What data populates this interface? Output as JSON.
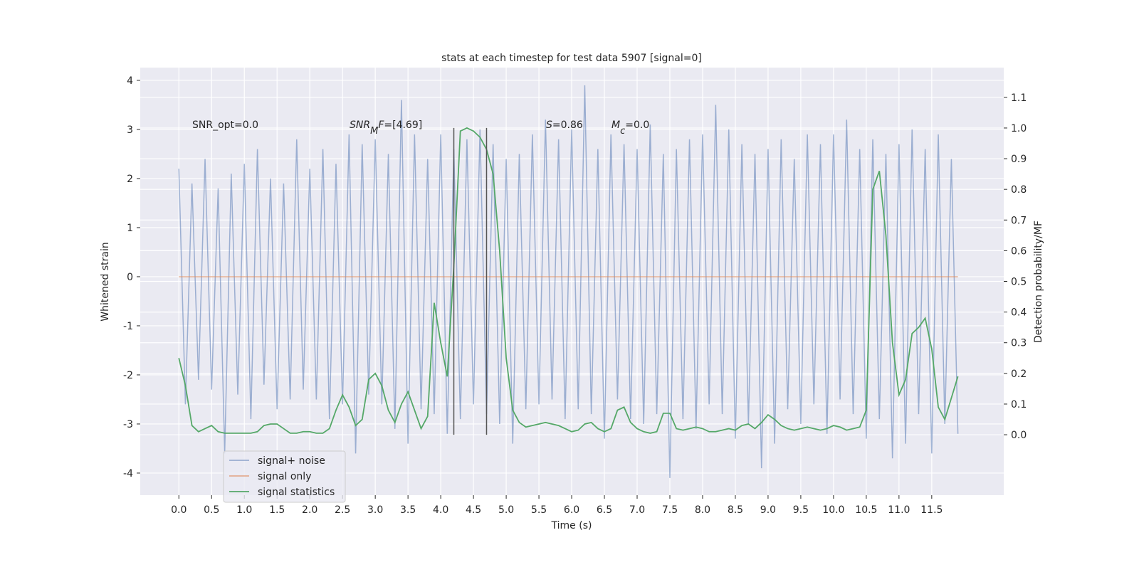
{
  "chart_data": {
    "type": "line",
    "title": "stats at each timestep for test data 5907 [signal=0]",
    "xlabel": "Time (s)",
    "ylabel": "Whitened strain",
    "y2label": "Detection probability/MF",
    "annotations": [
      [
        "SNR_opt=0.0"
      ],
      [
        "SNR",
        "M",
        "F",
        "=[4.69]"
      ],
      [
        "S",
        "=0.86"
      ],
      [
        "M",
        "c",
        "=0.0"
      ]
    ],
    "x": [
      0.0,
      0.1,
      0.2,
      0.3,
      0.4,
      0.5,
      0.6,
      0.7,
      0.8,
      0.9,
      1.0,
      1.1,
      1.2,
      1.3,
      1.4,
      1.5,
      1.6,
      1.7,
      1.8,
      1.9,
      2.0,
      2.1,
      2.2,
      2.3,
      2.4,
      2.5,
      2.6,
      2.7,
      2.8,
      2.9,
      3.0,
      3.1,
      3.2,
      3.3,
      3.4,
      3.5,
      3.6,
      3.7,
      3.8,
      3.9,
      4.0,
      4.1,
      4.2,
      4.3,
      4.4,
      4.5,
      4.6,
      4.7,
      4.8,
      4.9,
      5.0,
      5.1,
      5.2,
      5.3,
      5.4,
      5.5,
      5.6,
      5.7,
      5.8,
      5.9,
      6.0,
      6.1,
      6.2,
      6.3,
      6.4,
      6.5,
      6.6,
      6.7,
      6.8,
      6.9,
      7.0,
      7.1,
      7.2,
      7.3,
      7.4,
      7.5,
      7.6,
      7.7,
      7.8,
      7.9,
      8.0,
      8.1,
      8.2,
      8.3,
      8.4,
      8.5,
      8.6,
      8.7,
      8.8,
      8.9,
      9.0,
      9.1,
      9.2,
      9.3,
      9.4,
      9.5,
      9.6,
      9.7,
      9.8,
      9.9,
      10.0,
      10.1,
      10.2,
      10.3,
      10.4,
      10.5,
      10.6,
      10.7,
      10.8,
      10.9,
      11.0,
      11.1,
      11.2,
      11.3,
      11.4,
      11.5,
      11.6,
      11.7,
      11.8,
      11.9
    ],
    "series": [
      {
        "name": "signal+ noise",
        "color": "#4c72b0",
        "alpha": 0.5,
        "values": [
          2.2,
          -2.6,
          1.9,
          -2.1,
          2.4,
          -2.3,
          1.8,
          -3.6,
          2.1,
          -2.4,
          2.3,
          -2.9,
          2.6,
          -2.2,
          2.0,
          -2.7,
          1.9,
          -2.5,
          2.8,
          -2.3,
          2.2,
          -2.5,
          2.6,
          -2.9,
          2.3,
          -2.6,
          2.9,
          -3.6,
          2.7,
          -2.4,
          2.8,
          -2.6,
          2.5,
          -3.1,
          3.6,
          -3.4,
          2.9,
          -2.7,
          2.4,
          -2.8,
          2.9,
          -3.2,
          2.6,
          -2.9,
          2.8,
          -2.6,
          3.0,
          -2.8,
          2.7,
          -3.0,
          2.4,
          -3.4,
          2.5,
          -2.7,
          2.9,
          -2.6,
          3.2,
          -2.5,
          2.8,
          -2.9,
          3.0,
          -2.7,
          3.9,
          -2.8,
          2.6,
          -3.3,
          2.9,
          -2.5,
          2.7,
          -2.9,
          2.6,
          -3.0,
          3.1,
          -2.8,
          2.5,
          -4.1,
          2.6,
          -2.9,
          2.8,
          -3.1,
          2.9,
          -2.6,
          3.5,
          -2.8,
          3.0,
          -3.3,
          2.7,
          -3.0,
          2.5,
          -3.9,
          2.6,
          -3.4,
          2.8,
          -2.7,
          2.4,
          -3.0,
          2.9,
          -2.6,
          2.7,
          -3.2,
          2.9,
          -2.5,
          3.2,
          -2.8,
          2.6,
          -3.3,
          2.8,
          -2.9,
          2.5,
          -3.7,
          2.7,
          -3.4,
          3.0,
          -2.8,
          2.6,
          -3.6,
          2.9,
          -3.0,
          2.4,
          -3.2
        ]
      },
      {
        "name": "signal only",
        "color": "#dd8452",
        "alpha": 0.6,
        "values": [
          0,
          0,
          0,
          0,
          0,
          0,
          0,
          0,
          0,
          0,
          0,
          0,
          0,
          0,
          0,
          0,
          0,
          0,
          0,
          0,
          0,
          0,
          0,
          0,
          0,
          0,
          0,
          0,
          0,
          0,
          0,
          0,
          0,
          0,
          0,
          0,
          0,
          0,
          0,
          0,
          0,
          0,
          0,
          0,
          0,
          0,
          0,
          0,
          0,
          0,
          0,
          0,
          0,
          0,
          0,
          0,
          0,
          0,
          0,
          0,
          0,
          0,
          0,
          0,
          0,
          0,
          0,
          0,
          0,
          0,
          0,
          0,
          0,
          0,
          0,
          0,
          0,
          0,
          0,
          0,
          0,
          0,
          0,
          0,
          0,
          0,
          0,
          0,
          0,
          0,
          0,
          0,
          0,
          0,
          0,
          0,
          0,
          0,
          0,
          0,
          0,
          0,
          0,
          0,
          0,
          0,
          0,
          0,
          0,
          0,
          0,
          0,
          0,
          0,
          0,
          0,
          0,
          0,
          0,
          0
        ]
      },
      {
        "name": "signal statistics",
        "color": "#55a868",
        "alpha": 1,
        "axis": "y2",
        "values": [
          0.25,
          0.16,
          0.03,
          0.01,
          0.02,
          0.03,
          0.01,
          0.005,
          0.005,
          0.005,
          0.005,
          0.005,
          0.01,
          0.03,
          0.035,
          0.035,
          0.02,
          0.005,
          0.005,
          0.01,
          0.01,
          0.005,
          0.005,
          0.02,
          0.08,
          0.13,
          0.09,
          0.03,
          0.05,
          0.18,
          0.2,
          0.16,
          0.08,
          0.04,
          0.1,
          0.14,
          0.08,
          0.02,
          0.06,
          0.43,
          0.3,
          0.19,
          0.55,
          0.99,
          1.0,
          0.99,
          0.97,
          0.93,
          0.85,
          0.6,
          0.25,
          0.08,
          0.04,
          0.025,
          0.03,
          0.035,
          0.04,
          0.035,
          0.03,
          0.02,
          0.01,
          0.015,
          0.035,
          0.04,
          0.02,
          0.01,
          0.02,
          0.08,
          0.09,
          0.04,
          0.02,
          0.01,
          0.005,
          0.01,
          0.07,
          0.07,
          0.02,
          0.015,
          0.02,
          0.025,
          0.02,
          0.01,
          0.01,
          0.015,
          0.02,
          0.015,
          0.03,
          0.035,
          0.02,
          0.04,
          0.065,
          0.05,
          0.03,
          0.02,
          0.015,
          0.02,
          0.025,
          0.02,
          0.015,
          0.02,
          0.03,
          0.025,
          0.015,
          0.02,
          0.025,
          0.08,
          0.8,
          0.86,
          0.65,
          0.3,
          0.13,
          0.18,
          0.33,
          0.35,
          0.38,
          0.28,
          0.09,
          0.05,
          0.12,
          0.19
        ]
      }
    ],
    "vlines": {
      "x": [
        4.2,
        4.7
      ],
      "ymin": 0,
      "ymax": 1.0,
      "color": "#555555",
      "axis": "y2"
    },
    "xlim": [
      -0.59,
      12.6
    ],
    "ylim": [
      -4.45,
      4.26
    ],
    "y2lim": [
      -0.197,
      1.197
    ],
    "xticks": [
      {
        "value": 0,
        "label": "0.0"
      },
      0.5,
      {
        "value": 1,
        "label": "1.0"
      },
      1.5,
      {
        "value": 2,
        "label": "2.0"
      },
      2.5,
      {
        "value": 3,
        "label": "3.0"
      },
      3.5,
      {
        "value": 4,
        "label": "4.0"
      },
      4.5,
      {
        "value": 5,
        "label": "5.0"
      },
      5.5,
      {
        "value": 6,
        "label": "6.0"
      },
      6.5,
      {
        "value": 7,
        "label": "7.0"
      },
      7.5,
      {
        "value": 8,
        "label": "8.0"
      },
      8.5,
      {
        "value": 9,
        "label": "9.0"
      },
      9.5,
      {
        "value": 10,
        "label": "10.0"
      },
      10.5,
      {
        "value": 11,
        "label": "11.0"
      },
      11.5
    ],
    "yticks": [
      -4,
      -3,
      -2,
      -1,
      0,
      1,
      2,
      3,
      4
    ],
    "y2ticks": [
      {
        "value": 0,
        "label": "0.0"
      },
      0.1,
      0.2,
      0.3,
      0.4,
      0.5,
      0.6,
      0.7,
      0.8,
      0.9,
      {
        "value": 1,
        "label": "1.0"
      },
      1.1
    ],
    "grid": true,
    "legend": "lower left"
  }
}
